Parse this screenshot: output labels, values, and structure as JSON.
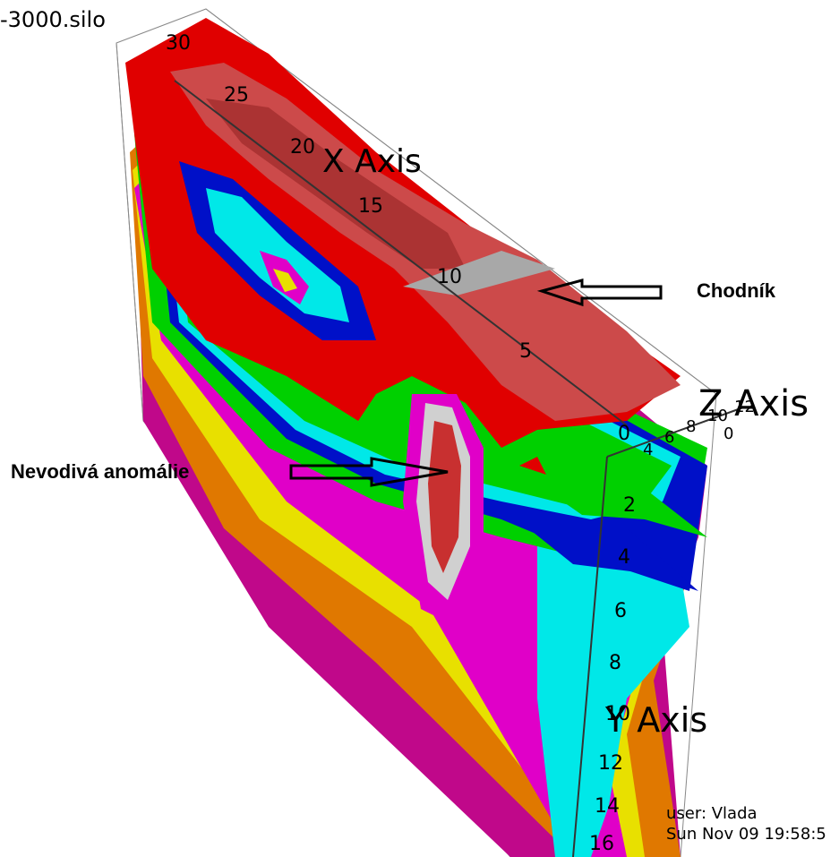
{
  "window": {
    "file_label": "-3000.silo"
  },
  "annotations": {
    "sidewalk_label": "Chodník",
    "anomaly_label": "Nevodivá anomálie"
  },
  "axes": {
    "x_title": "X Axis",
    "y_title": "Y Axis",
    "z_title": "Z Axis",
    "x_ticks": [
      "30",
      "25",
      "20",
      "15",
      "10",
      "5",
      "0"
    ],
    "y_ticks": [
      "2",
      "4",
      "6",
      "8",
      "10",
      "12",
      "14",
      "16"
    ],
    "z_ticks": [
      "4",
      "6",
      "8",
      "10",
      "12",
      "0"
    ]
  },
  "footer": {
    "user": "user: Vlada",
    "date": "Sun Nov 09 19:58:5"
  },
  "colors": {
    "red": "#e00000",
    "dark_red": "#b81010",
    "green": "#00d000",
    "blue": "#0010c8",
    "cyan": "#00e8e8",
    "magenta": "#e000c8",
    "purple_magenta": "#c0088a",
    "yellow": "#e8e000",
    "orange": "#e07800",
    "gray": "#a8a8a8"
  }
}
